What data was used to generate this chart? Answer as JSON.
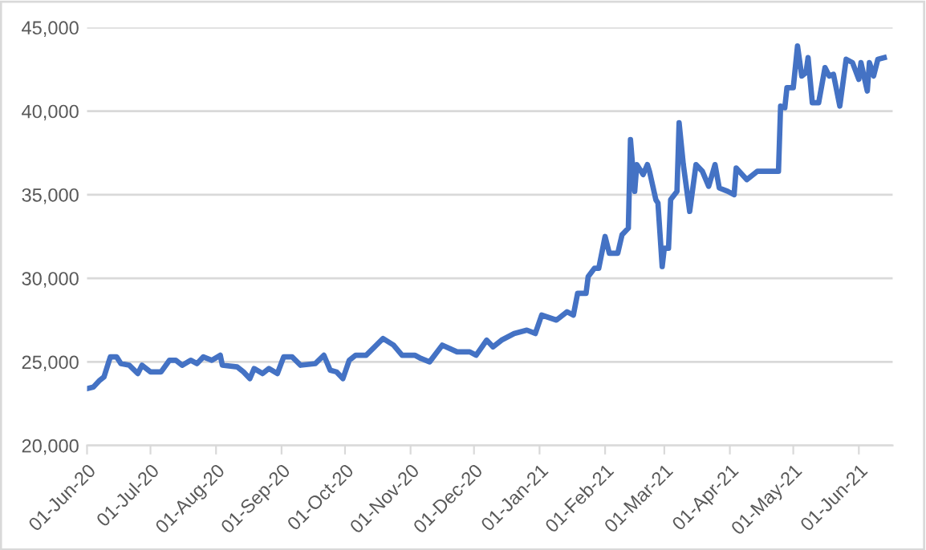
{
  "chart_data": {
    "type": "line",
    "x": [
      "2020-06-01",
      "2020-06-04",
      "2020-06-07",
      "2020-06-09",
      "2020-06-12",
      "2020-06-15",
      "2020-06-17",
      "2020-06-21",
      "2020-06-25",
      "2020-06-27",
      "2020-07-01",
      "2020-07-06",
      "2020-07-10",
      "2020-07-13",
      "2020-07-16",
      "2020-07-20",
      "2020-07-23",
      "2020-07-26",
      "2020-07-30",
      "2020-08-03",
      "2020-08-04",
      "2020-08-11",
      "2020-08-14",
      "2020-08-17",
      "2020-08-19",
      "2020-08-23",
      "2020-08-26",
      "2020-08-30",
      "2020-09-02",
      "2020-09-06",
      "2020-09-10",
      "2020-09-17",
      "2020-09-21",
      "2020-09-24",
      "2020-09-27",
      "2020-09-30",
      "2020-10-03",
      "2020-10-06",
      "2020-10-11",
      "2020-10-15",
      "2020-10-19",
      "2020-10-24",
      "2020-10-28",
      "2020-11-03",
      "2020-11-06",
      "2020-11-10",
      "2020-11-16",
      "2020-11-23",
      "2020-11-29",
      "2020-12-02",
      "2020-12-07",
      "2020-12-10",
      "2020-12-14",
      "2020-12-20",
      "2020-12-26",
      "2020-12-30",
      "2021-01-02",
      "2021-01-09",
      "2021-01-14",
      "2021-01-17",
      "2021-01-19",
      "2021-01-23",
      "2021-01-24",
      "2021-01-27",
      "2021-01-29",
      "2021-02-01",
      "2021-02-03",
      "2021-02-07",
      "2021-02-09",
      "2021-02-12",
      "2021-02-13",
      "2021-02-15",
      "2021-02-16",
      "2021-02-19",
      "2021-02-21",
      "2021-02-22",
      "2021-02-25",
      "2021-02-26",
      "2021-02-28",
      "2021-03-01",
      "2021-03-03",
      "2021-03-04",
      "2021-03-07",
      "2021-03-08",
      "2021-03-10",
      "2021-03-13",
      "2021-03-16",
      "2021-03-19",
      "2021-03-22",
      "2021-03-25",
      "2021-03-27",
      "2021-03-31",
      "2021-04-03",
      "2021-04-04",
      "2021-04-09",
      "2021-04-14",
      "2021-04-18",
      "2021-04-24",
      "2021-04-25",
      "2021-04-27",
      "2021-04-28",
      "2021-05-01",
      "2021-05-03",
      "2021-05-05",
      "2021-05-07",
      "2021-05-08",
      "2021-05-10",
      "2021-05-13",
      "2021-05-16",
      "2021-05-18",
      "2021-05-20",
      "2021-05-23",
      "2021-05-26",
      "2021-05-29",
      "2021-06-01",
      "2021-06-02",
      "2021-06-05",
      "2021-06-06",
      "2021-06-08",
      "2021-06-10",
      "2021-06-13"
    ],
    "series": [
      {
        "color": "#4472c4",
        "values": [
          23400,
          23500,
          23900,
          24100,
          25300,
          25300,
          24900,
          24800,
          24300,
          24800,
          24400,
          24400,
          25100,
          25100,
          24800,
          25100,
          24900,
          25300,
          25100,
          25400,
          24800,
          24700,
          24400,
          24000,
          24600,
          24300,
          24600,
          24300,
          25300,
          25300,
          24800,
          24900,
          25400,
          24500,
          24400,
          24000,
          25100,
          25400,
          25400,
          25900,
          26400,
          26000,
          25400,
          25400,
          25200,
          25000,
          26000,
          25600,
          25600,
          25400,
          26300,
          25900,
          26300,
          26700,
          26900,
          26700,
          27800,
          27500,
          28000,
          27800,
          29100,
          29100,
          30100,
          30600,
          30600,
          32500,
          31500,
          31500,
          32600,
          33000,
          38300,
          35200,
          36800,
          36200,
          36800,
          36400,
          34700,
          34500,
          30700,
          31800,
          31800,
          34700,
          35200,
          39300,
          36800,
          34000,
          36800,
          36400,
          35500,
          36800,
          35400,
          35200,
          35000,
          36600,
          35900,
          36400,
          36400,
          36400,
          40300,
          40200,
          41400,
          41400,
          43900,
          42100,
          42300,
          43200,
          40500,
          40500,
          42600,
          42100,
          42200,
          40300,
          43100,
          42900,
          41900,
          42900,
          41200,
          42900,
          42100,
          43100,
          43200
        ]
      }
    ],
    "xlim": [
      "2020-06-01",
      "2021-06-17"
    ],
    "xticks": [
      {
        "value": "2020-06-01",
        "label": "01-Jun-20"
      },
      {
        "value": "2020-07-01",
        "label": "01-Jul-20"
      },
      {
        "value": "2020-08-01",
        "label": "01-Aug-20"
      },
      {
        "value": "2020-09-01",
        "label": "01-Sep-20"
      },
      {
        "value": "2020-10-01",
        "label": "01-Oct-20"
      },
      {
        "value": "2020-11-01",
        "label": "01-Nov-20"
      },
      {
        "value": "2020-12-01",
        "label": "01-Dec-20"
      },
      {
        "value": "2021-01-01",
        "label": "01-Jan-21"
      },
      {
        "value": "2021-02-01",
        "label": "01-Feb-21"
      },
      {
        "value": "2021-03-01",
        "label": "01-Mar-21"
      },
      {
        "value": "2021-04-01",
        "label": "01-Apr-21"
      },
      {
        "value": "2021-05-01",
        "label": "01-May-21"
      },
      {
        "value": "2021-06-01",
        "label": "01-Jun-21"
      }
    ],
    "ylim": [
      20000,
      45000
    ],
    "yticks": [
      {
        "value": 20000,
        "label": "20,000"
      },
      {
        "value": 25000,
        "label": "25,000"
      },
      {
        "value": 30000,
        "label": "30,000"
      },
      {
        "value": 35000,
        "label": "35,000"
      },
      {
        "value": 40000,
        "label": "40,000"
      },
      {
        "value": 45000,
        "label": "45,000"
      }
    ],
    "grid": "y",
    "legend": false,
    "marker": "none",
    "line_style": "solid"
  }
}
